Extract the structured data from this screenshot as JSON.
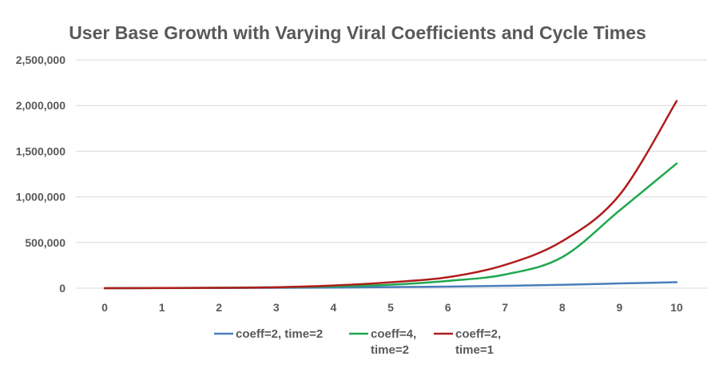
{
  "chart_data": {
    "type": "line",
    "title": "User Base Growth with Varying Viral Coefficients and Cycle Times",
    "xlabel": "",
    "ylabel": "",
    "x": [
      0,
      1,
      2,
      3,
      4,
      5,
      6,
      7,
      8,
      9,
      10
    ],
    "xlim": [
      0,
      10
    ],
    "ylim": [
      0,
      2500000
    ],
    "y_ticks": [
      "0",
      "500,000",
      "1,000,000",
      "1,500,000",
      "2,000,000",
      "2,500,000"
    ],
    "x_ticks": [
      "0",
      "1",
      "2",
      "3",
      "4",
      "5",
      "6",
      "7",
      "8",
      "9",
      "10"
    ],
    "grid": "horizontal",
    "legend_position": "bottom",
    "series": [
      {
        "name_lines": [
          "coeff=2, time=2"
        ],
        "color": "#4a7ebb",
        "values": [
          0,
          1000,
          2000,
          4000,
          7000,
          12000,
          18000,
          26000,
          37000,
          52000,
          66000
        ]
      },
      {
        "name_lines": [
          "coeff=4,",
          "time=2"
        ],
        "color": "#1fa84f",
        "values": [
          0,
          2000,
          5000,
          10000,
          19000,
          38000,
          80000,
          150000,
          340000,
          850000,
          1365000
        ]
      },
      {
        "name_lines": [
          "coeff=2,",
          "time=1"
        ],
        "color": "#b01c1c",
        "values": [
          0,
          2000,
          4000,
          10000,
          30000,
          65000,
          120000,
          255000,
          515000,
          1020000,
          2050000
        ]
      }
    ]
  }
}
